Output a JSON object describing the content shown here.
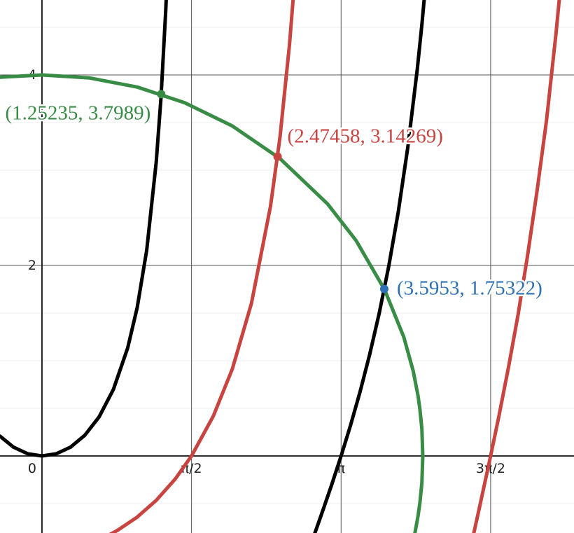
{
  "chart_data": {
    "type": "function-plot",
    "xlim": [
      -0.441,
      5.588
    ],
    "ylim": [
      -0.809,
      4.787
    ],
    "xticks": [
      {
        "value": 0,
        "label": "0"
      },
      {
        "value": 1.5708,
        "label": "π/2"
      },
      {
        "value": 3.1416,
        "label": "π"
      },
      {
        "value": 4.7124,
        "label": "3π/2"
      }
    ],
    "yticks": [
      2,
      4
    ],
    "grid": true,
    "series": [
      {
        "color": "#000000",
        "x": [
          -0.44,
          -0.3,
          -0.15,
          0,
          0.15,
          0.3,
          0.45,
          0.6,
          0.75,
          0.9,
          1.0,
          1.1,
          1.2,
          1.25,
          1.3,
          1.32
        ],
        "values": [
          0.207,
          0.0928,
          0.0227,
          0,
          0.0227,
          0.0928,
          0.2174,
          0.4105,
          0.6987,
          1.1341,
          1.5574,
          2.1613,
          3.0866,
          3.762,
          4.6827,
          5.152
        ]
      },
      {
        "color": "#000000",
        "x": [
          2.8616,
          2.8916,
          2.9416,
          3.0416,
          3.1416,
          3.2416,
          3.3416,
          3.4416,
          3.5416,
          3.6416,
          3.7416,
          3.8416,
          3.9416,
          3.9916,
          4.0416
        ],
        "values": [
          -0.823,
          -0.738,
          -0.596,
          -0.305,
          0,
          0.3252,
          0.6774,
          1.0645,
          1.4974,
          1.9894,
          2.5596,
          3.2358,
          4.0583,
          4.5436,
          5.0932
        ]
      },
      {
        "color": "#c74440",
        "x": [
          0.72,
          0.75,
          0.8,
          1.0,
          1.2,
          1.4,
          1.5708,
          1.8,
          2.0,
          2.2,
          2.4,
          2.5,
          2.6,
          2.65
        ],
        "values": [
          -0.821,
          -0.805,
          -0.777,
          -0.642,
          -0.4665,
          -0.2415,
          0,
          0.42,
          0.9153,
          1.6014,
          2.62,
          3.3467,
          4.3217,
          4.9468
        ]
      },
      {
        "color": "#c74440",
        "x": [
          4.53,
          4.6,
          4.7124,
          4.8,
          4.9,
          5.0,
          5.1,
          5.2,
          5.3,
          5.4,
          5.45
        ],
        "values": [
          -0.836,
          -0.519,
          0,
          0.4216,
          0.9304,
          1.479,
          2.101,
          2.781,
          3.5275,
          4.442,
          4.964
        ]
      },
      {
        "color": "#388c46",
        "x": [
          -0.44,
          0,
          0.5,
          1,
          1.5,
          2,
          2.5,
          3,
          3.3,
          3.6,
          3.8,
          3.9,
          3.95,
          3.97,
          3.99,
          4,
          3.99,
          3.97,
          3.95,
          3.92,
          3.915
        ],
        "values": [
          3.976,
          4,
          3.9686,
          3.873,
          3.708,
          3.464,
          3.1225,
          2.6458,
          2.2605,
          1.7436,
          1.249,
          0.8888,
          0.6305,
          0.4889,
          0.2827,
          0,
          -0.2827,
          -0.4889,
          -0.6305,
          -0.796,
          -0.82
        ]
      }
    ],
    "points": [
      {
        "x": 1.25235,
        "y": 3.7989,
        "label": "(1.25235, 3.7989)",
        "color": "#388c46"
      },
      {
        "x": 2.47458,
        "y": 3.14269,
        "label": "(2.47458, 3.14269)",
        "color": "#c74440"
      },
      {
        "x": 3.5953,
        "y": 1.75322,
        "label": "(3.5953, 1.75322)",
        "color": "#2d70b3"
      }
    ]
  }
}
